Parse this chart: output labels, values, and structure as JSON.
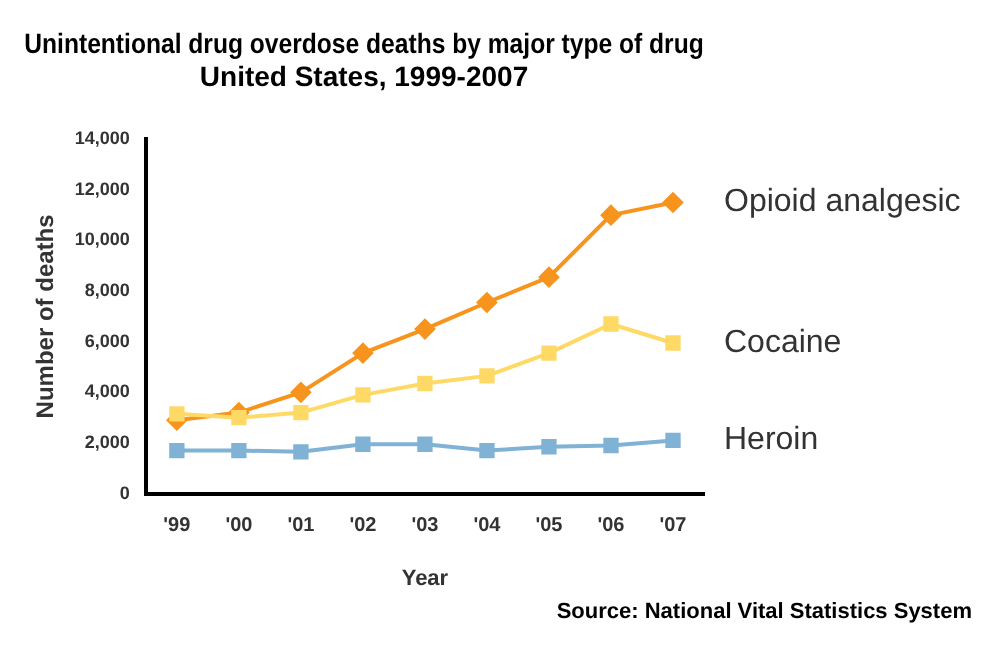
{
  "chart_data": {
    "type": "line",
    "title": "Unintentional drug overdose deaths by major type of drug",
    "subtitle": "United States, 1999-2007",
    "xlabel": "Year",
    "ylabel": "Number of deaths",
    "categories": [
      "'99",
      "'00",
      "'01",
      "'02",
      "'03",
      "'04",
      "'05",
      "'06",
      "'07"
    ],
    "series": [
      {
        "name": "Opioid analgesic",
        "color": "#f7941d",
        "marker": "diamond",
        "values": [
          2900,
          3200,
          4000,
          5550,
          6500,
          7550,
          8550,
          11000,
          11500
        ]
      },
      {
        "name": "Cocaine",
        "color": "#ffd966",
        "marker": "square",
        "values": [
          3150,
          3000,
          3200,
          3900,
          4350,
          4650,
          5550,
          6700,
          5950
        ]
      },
      {
        "name": "Heroin",
        "color": "#7fb2d5",
        "marker": "square",
        "values": [
          1700,
          1700,
          1650,
          1950,
          1950,
          1700,
          1850,
          1900,
          2100
        ]
      }
    ],
    "ylim": [
      0,
      14000
    ],
    "yticks": [
      0,
      {
        "value": 2000,
        "label": "2,000"
      },
      {
        "value": 4000,
        "label": "4,000"
      },
      {
        "value": 6000,
        "label": "6,000"
      },
      {
        "value": 8000,
        "label": "8,000"
      },
      {
        "value": 10000,
        "label": "10,000"
      },
      {
        "value": 12000,
        "label": "12,000"
      },
      {
        "value": 14000,
        "label": "14,000"
      }
    ],
    "grid": false,
    "legend": false,
    "annotations": [
      "Source: National Vital Statistics System"
    ]
  }
}
